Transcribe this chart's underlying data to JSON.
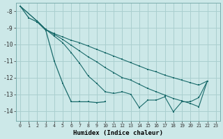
{
  "xlabel": "Humidex (Indice chaleur)",
  "background_color": "#cce8e8",
  "grid_color": "#aacfcf",
  "line_color": "#1a6b6b",
  "xlim": [
    -0.5,
    23.5
  ],
  "ylim": [
    -14.6,
    -7.5
  ],
  "xticks": [
    0,
    1,
    2,
    3,
    4,
    5,
    6,
    7,
    8,
    9,
    10,
    11,
    12,
    13,
    14,
    15,
    16,
    17,
    18,
    19,
    20,
    21,
    22,
    23
  ],
  "yticks": [
    -8,
    -9,
    -10,
    -11,
    -12,
    -13,
    -14
  ],
  "line1_x": [
    0,
    1,
    2,
    3,
    4,
    5,
    6,
    7,
    8,
    9,
    10
  ],
  "line1_y": [
    -7.7,
    -8.4,
    -8.65,
    -9.15,
    -11.0,
    -12.35,
    -13.45,
    -13.45,
    -13.45,
    -13.5,
    -13.45
  ],
  "line2_x": [
    0,
    2,
    3,
    4,
    5,
    6,
    7,
    8,
    9,
    10,
    11,
    12,
    13,
    14,
    15,
    16,
    17,
    18,
    19,
    20,
    21,
    22
  ],
  "line2_y": [
    -7.7,
    -8.6,
    -9.1,
    -9.35,
    -9.55,
    -9.75,
    -9.9,
    -10.1,
    -10.3,
    -10.5,
    -10.7,
    -10.9,
    -11.1,
    -11.3,
    -11.5,
    -11.65,
    -11.85,
    -12.0,
    -12.15,
    -12.3,
    -12.45,
    -12.2
  ],
  "line3_x": [
    0,
    2,
    3,
    4,
    5,
    6,
    7,
    8,
    9,
    10,
    11,
    12,
    13,
    14,
    15,
    16,
    17,
    18,
    19,
    20,
    21,
    22
  ],
  "line3_y": [
    -7.7,
    -8.6,
    -9.1,
    -9.4,
    -9.7,
    -10.05,
    -10.4,
    -10.75,
    -11.05,
    -11.4,
    -11.7,
    -12.0,
    -12.15,
    -12.4,
    -12.65,
    -12.85,
    -13.05,
    -13.25,
    -13.4,
    -13.55,
    -13.75,
    -12.2
  ],
  "line4_x": [
    2,
    3,
    4,
    5,
    6,
    7,
    8,
    9,
    10,
    11,
    12,
    13,
    14,
    15,
    16,
    17,
    18,
    19,
    20,
    21,
    22
  ],
  "line4_y": [
    -8.6,
    -9.1,
    -9.5,
    -9.9,
    -10.5,
    -11.15,
    -11.9,
    -12.35,
    -12.85,
    -12.95,
    -12.85,
    -13.0,
    -13.8,
    -13.35,
    -13.35,
    -13.15,
    -14.05,
    -13.45,
    -13.45,
    -13.2,
    -12.2
  ]
}
